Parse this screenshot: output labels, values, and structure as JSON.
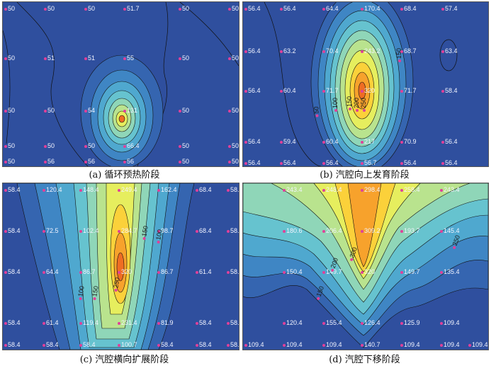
{
  "captions": {
    "a": "(a) 循环预热阶段",
    "b": "(b) 汽腔向上发育阶段",
    "c": "(c) 汽腔横向扩展阶段",
    "d": "(d) 汽腔下移阶段"
  },
  "colors": {
    "base": "#2f4f9e",
    "levels": [
      "#2f4f9e",
      "#3565b0",
      "#3f86c4",
      "#4fa8cf",
      "#66c3cf",
      "#8fd6b8",
      "#b9e38e",
      "#e6ee5e",
      "#fbd13a",
      "#f7a22c",
      "#ef6d23"
    ]
  },
  "panel_a": {
    "labels": [
      {
        "t": "50"
      },
      {
        "t": "50"
      },
      {
        "t": "50"
      },
      {
        "t": "51.7"
      },
      {
        "t": "50"
      },
      {
        "t": "50"
      },
      {
        "t": "50"
      },
      {
        "t": "51"
      },
      {
        "t": "51"
      },
      {
        "t": "55"
      },
      {
        "t": "50"
      },
      {
        "t": "50"
      },
      {
        "t": "50"
      },
      {
        "t": "50"
      },
      {
        "t": "54"
      },
      {
        "t": "131"
      },
      {
        "t": "50"
      },
      {
        "t": "50"
      },
      {
        "t": "50"
      },
      {
        "t": "50"
      },
      {
        "t": "50"
      },
      {
        "t": "66.4"
      },
      {
        "t": "50"
      },
      {
        "t": "50"
      },
      {
        "t": "50"
      },
      {
        "t": "56"
      },
      {
        "t": "56"
      },
      {
        "t": "56"
      },
      {
        "t": "50"
      },
      {
        "t": "50"
      }
    ]
  },
  "panel_b": {
    "labels": [
      {
        "t": "56.4"
      },
      {
        "t": "56.4"
      },
      {
        "t": "64.4"
      },
      {
        "t": "170.4"
      },
      {
        "t": "68.4"
      },
      {
        "t": "57.4"
      },
      {
        "t": "56.4"
      },
      {
        "t": "63.2"
      },
      {
        "t": "70.4"
      },
      {
        "t": "243.2"
      },
      {
        "t": "68.7"
      },
      {
        "t": "63.4"
      },
      {
        "t": "56.4"
      },
      {
        "t": "60.4"
      },
      {
        "t": "71.7"
      },
      {
        "t": "320"
      },
      {
        "t": "71.7"
      },
      {
        "t": "58.4"
      },
      {
        "t": "56.4"
      },
      {
        "t": "59.4"
      },
      {
        "t": "60.4"
      },
      {
        "t": "217"
      },
      {
        "t": "70.9"
      },
      {
        "t": "56.4"
      },
      {
        "t": "56.4"
      },
      {
        "t": "56.4"
      },
      {
        "t": "56.4"
      },
      {
        "t": "56.7"
      },
      {
        "t": "56.4"
      },
      {
        "t": "56.4"
      }
    ],
    "contours": [
      "50",
      "100",
      "150",
      "200",
      "250",
      "150"
    ]
  },
  "panel_c": {
    "labels": [
      {
        "t": "58.4"
      },
      {
        "t": "120.4"
      },
      {
        "t": "148.4"
      },
      {
        "t": "249.4"
      },
      {
        "t": "162.4"
      },
      {
        "t": "68.4"
      },
      {
        "t": "58.4"
      },
      {
        "t": "58.4"
      },
      {
        "t": "72.5"
      },
      {
        "t": "102.4"
      },
      {
        "t": "284.7"
      },
      {
        "t": "98.7"
      },
      {
        "t": "68.4"
      },
      {
        "t": "58.4"
      },
      {
        "t": "58.4"
      },
      {
        "t": "64.4"
      },
      {
        "t": "86.7"
      },
      {
        "t": "320"
      },
      {
        "t": "86.7"
      },
      {
        "t": "61.4"
      },
      {
        "t": "58.4"
      },
      {
        "t": "58.4"
      },
      {
        "t": "61.4"
      },
      {
        "t": "119.4"
      },
      {
        "t": "231.4"
      },
      {
        "t": "81.9"
      },
      {
        "t": "58.4"
      },
      {
        "t": "58.4"
      },
      {
        "t": "58.4"
      },
      {
        "t": "58.4"
      },
      {
        "t": "58.4"
      },
      {
        "t": "100.7"
      },
      {
        "t": "58.4"
      },
      {
        "t": "58.4"
      },
      {
        "t": "58.4"
      }
    ],
    "contours": [
      "100",
      "150",
      "250",
      "100",
      "150"
    ]
  },
  "panel_d": {
    "labels": [
      {
        "t": "243.4"
      },
      {
        "t": "248.4"
      },
      {
        "t": "298.4"
      },
      {
        "t": "258.4"
      },
      {
        "t": "243.4"
      },
      {
        "t": "180.6"
      },
      {
        "t": "206.4"
      },
      {
        "t": "309.2"
      },
      {
        "t": "193.7"
      },
      {
        "t": "145.4"
      },
      {
        "t": "150.4"
      },
      {
        "t": "149.7"
      },
      {
        "t": "320"
      },
      {
        "t": "149.7"
      },
      {
        "t": "135.4"
      },
      {
        "t": "120.4"
      },
      {
        "t": "155.4"
      },
      {
        "t": "126.4"
      },
      {
        "t": "125.9"
      },
      {
        "t": "109.4"
      },
      {
        "t": "109.4"
      },
      {
        "t": "109.4"
      },
      {
        "t": "109.4"
      },
      {
        "t": "140.7"
      },
      {
        "t": "109.4"
      },
      {
        "t": "109.4"
      },
      {
        "t": "109.4"
      }
    ],
    "contours": [
      "300",
      "200",
      "150",
      "250"
    ]
  }
}
